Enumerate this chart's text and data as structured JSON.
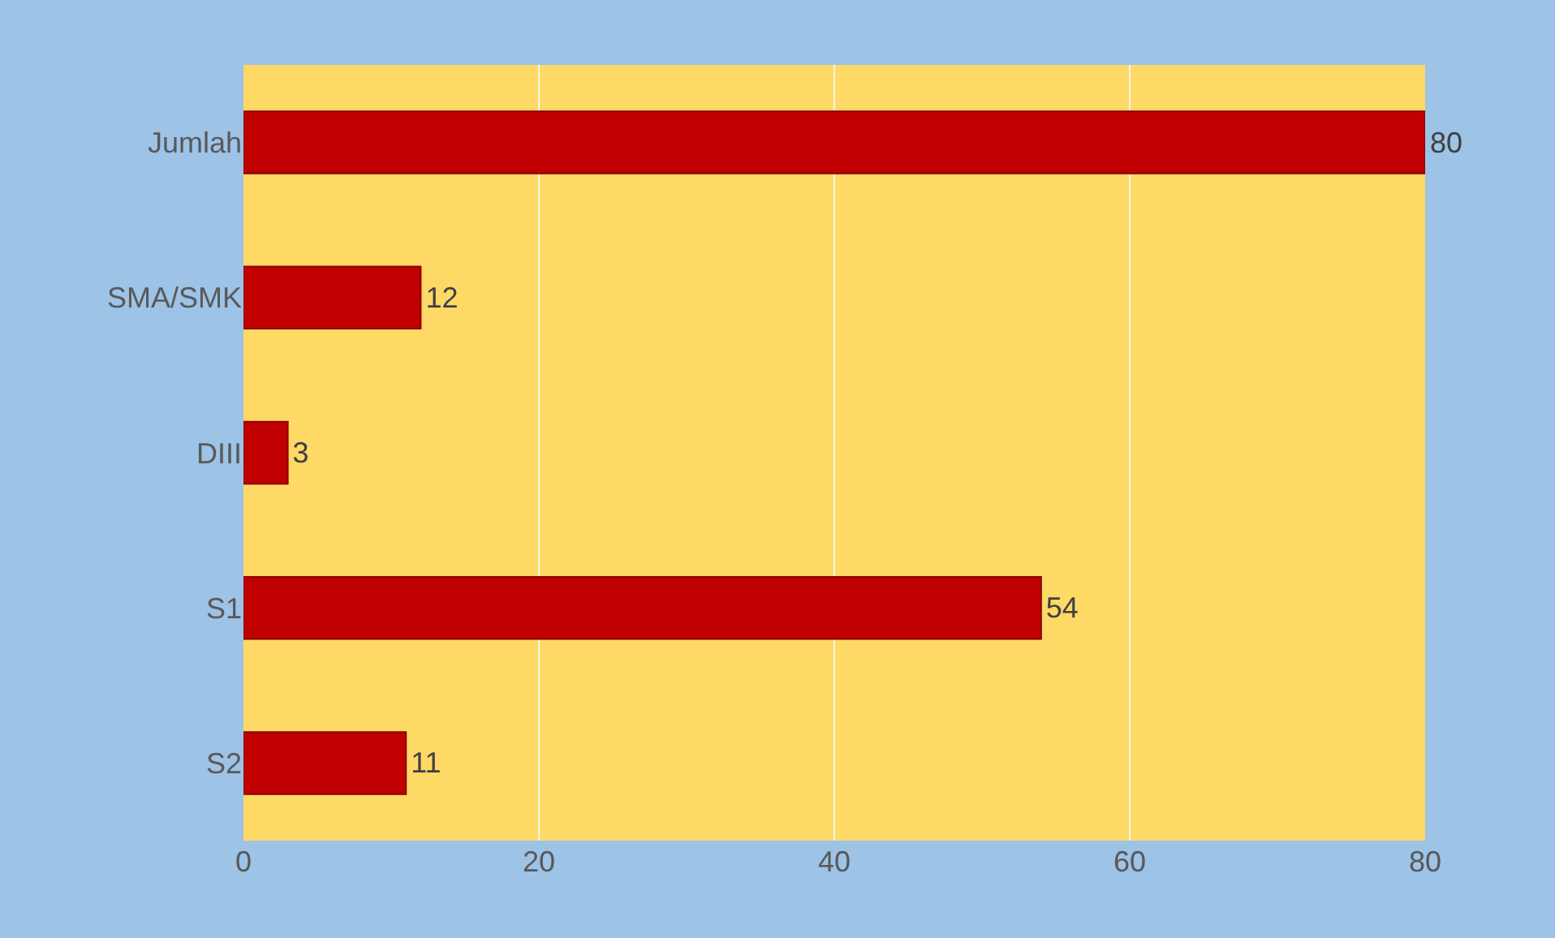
{
  "chart_data": {
    "type": "bar",
    "orientation": "horizontal",
    "categories": [
      "Jumlah",
      "SMA/SMK",
      "DIII",
      "S1",
      "S2"
    ],
    "values": [
      80,
      12,
      3,
      54,
      11
    ],
    "color": "#c00000",
    "xlim": [
      0,
      80
    ],
    "xticks": [
      0,
      20,
      40,
      60,
      80
    ],
    "grid": "x",
    "data_labels": true
  }
}
